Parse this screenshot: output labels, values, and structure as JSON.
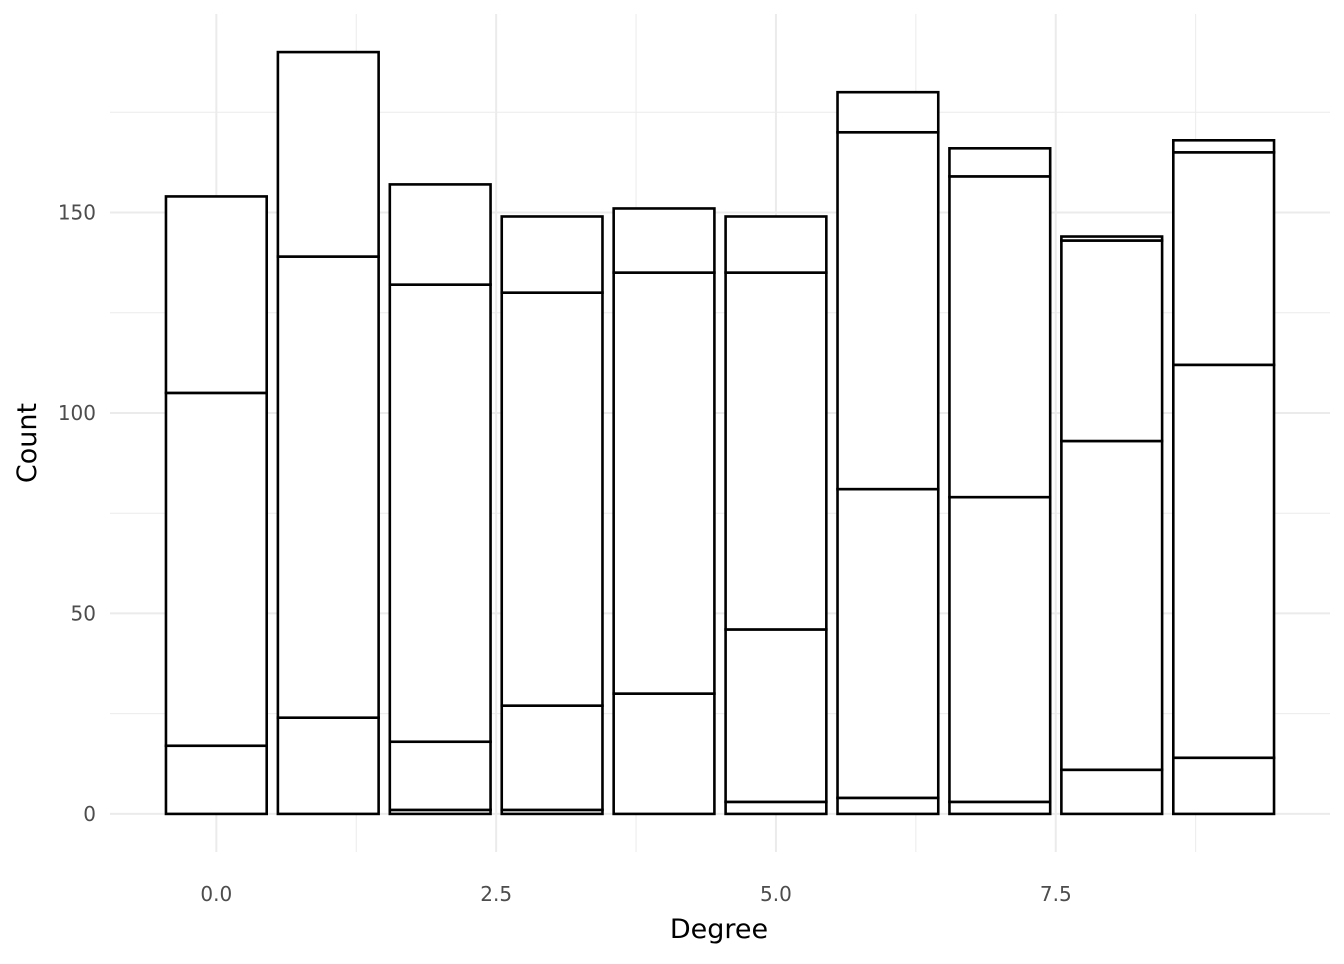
{
  "chart_data": {
    "type": "bar",
    "stacked": true,
    "title": "",
    "xlabel": "Degree",
    "ylabel": "Count",
    "xlim": [
      -0.95,
      9.95
    ],
    "ylim": [
      -9.5,
      199.5
    ],
    "x_ticks": [
      0.0,
      2.5,
      5.0,
      7.5
    ],
    "x_tick_labels": [
      "0.0",
      "2.5",
      "5.0",
      "7.5"
    ],
    "y_ticks": [
      0,
      50,
      100,
      150
    ],
    "y_tick_labels": [
      "0",
      "50",
      "100",
      "150"
    ],
    "grid": true,
    "legend": "none",
    "bar_width": 0.9,
    "bar_fill": "#ffffff",
    "bar_outline": "#000000",
    "grid_color": "#ebebeb",
    "x": [
      0,
      1,
      2,
      3,
      4,
      5,
      6,
      7,
      8,
      9
    ],
    "segment_boundaries": [
      [
        0,
        17,
        105,
        154
      ],
      [
        0,
        24,
        139,
        190
      ],
      [
        0,
        1,
        18,
        132,
        157
      ],
      [
        0,
        1,
        27,
        130,
        149
      ],
      [
        0,
        30,
        135,
        151
      ],
      [
        0,
        3,
        46,
        135,
        149
      ],
      [
        0,
        4,
        81,
        170,
        180
      ],
      [
        0,
        3,
        79,
        159,
        166
      ],
      [
        0,
        11,
        93,
        143,
        144
      ],
      [
        0,
        14,
        112,
        165,
        168
      ]
    ]
  }
}
